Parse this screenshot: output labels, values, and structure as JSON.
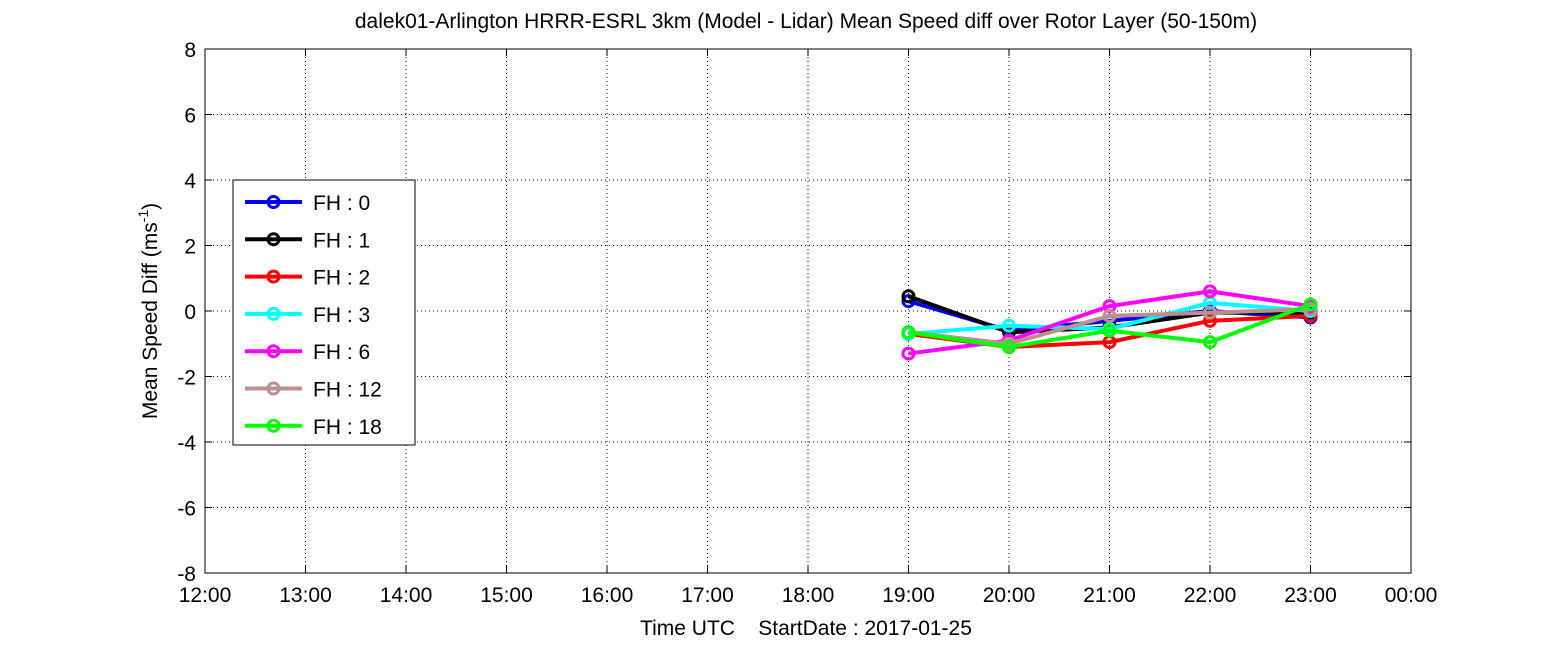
{
  "chart_data": {
    "type": "line",
    "title": "dalek01-Arlington HRRR-ESRL 3km (Model - Lidar) Mean Speed diff over Rotor Layer (50-150m)",
    "xlabel": "Time UTC    StartDate : 2017-01-25",
    "ylabel": {
      "prefix": "Mean Speed Diff (ms",
      "superscript": "-1",
      "suffix": ")"
    },
    "x_ticks": [
      "12:00",
      "13:00",
      "14:00",
      "15:00",
      "16:00",
      "17:00",
      "18:00",
      "19:00",
      "20:00",
      "21:00",
      "22:00",
      "23:00",
      "00:00"
    ],
    "xlim": [
      "2017-01-25 12:00",
      "2017-01-26 00:00"
    ],
    "y_ticks": [
      "-8",
      "-6",
      "-4",
      "-2",
      "0",
      "2",
      "4",
      "6",
      "8"
    ],
    "ylim": [
      -8,
      8
    ],
    "grid": true,
    "legend_position": "left",
    "x": [
      "19:00",
      "20:00",
      "21:00",
      "22:00",
      "23:00"
    ],
    "series": [
      {
        "name": "FH : 0",
        "color": "#0000ff",
        "values": [
          0.3,
          -0.6,
          -0.3,
          0.0,
          -0.2
        ]
      },
      {
        "name": "FH : 1",
        "color": "#000000",
        "values": [
          0.45,
          -0.65,
          -0.5,
          -0.05,
          -0.05
        ]
      },
      {
        "name": "FH : 2",
        "color": "#ff0000",
        "values": [
          -0.7,
          -1.1,
          -0.95,
          -0.3,
          -0.15
        ]
      },
      {
        "name": "FH : 3",
        "color": "#00ffff",
        "values": [
          -0.7,
          -0.45,
          -0.55,
          0.25,
          0.0
        ]
      },
      {
        "name": "FH : 6",
        "color": "#ff00ff",
        "values": [
          -1.3,
          -0.9,
          0.15,
          0.6,
          0.15
        ]
      },
      {
        "name": "FH : 12",
        "color": "#bc8f8f",
        "values": [
          -0.65,
          -1.0,
          -0.15,
          -0.05,
          0.05
        ]
      },
      {
        "name": "FH : 18",
        "color": "#00ff00",
        "values": [
          -0.65,
          -1.1,
          -0.6,
          -0.95,
          0.2
        ]
      }
    ]
  }
}
